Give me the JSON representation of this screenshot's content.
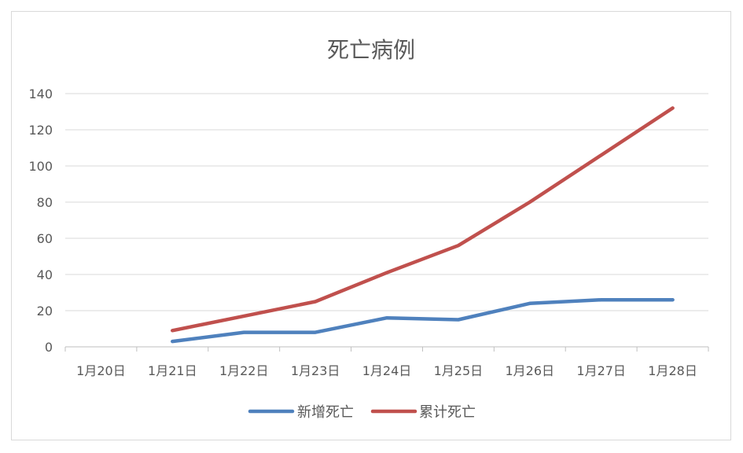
{
  "chart_data": {
    "type": "line",
    "title": "死亡病例",
    "categories": [
      "1月20日",
      "1月21日",
      "1月22日",
      "1月23日",
      "1月24日",
      "1月25日",
      "1月26日",
      "1月27日",
      "1月28日"
    ],
    "yticks": [
      "0",
      "20",
      "40",
      "60",
      "80",
      "100",
      "120",
      "140"
    ],
    "ylim": [
      0,
      140
    ],
    "grid": true,
    "legend_position": "bottom",
    "series": [
      {
        "name": "新增死亡",
        "color": "#4f81bd",
        "values": [
          null,
          3,
          8,
          8,
          16,
          15,
          24,
          26,
          26
        ]
      },
      {
        "name": "累计死亡",
        "color": "#c0504d",
        "values": [
          null,
          9,
          17,
          25,
          41,
          56,
          80,
          106,
          132
        ]
      }
    ]
  }
}
